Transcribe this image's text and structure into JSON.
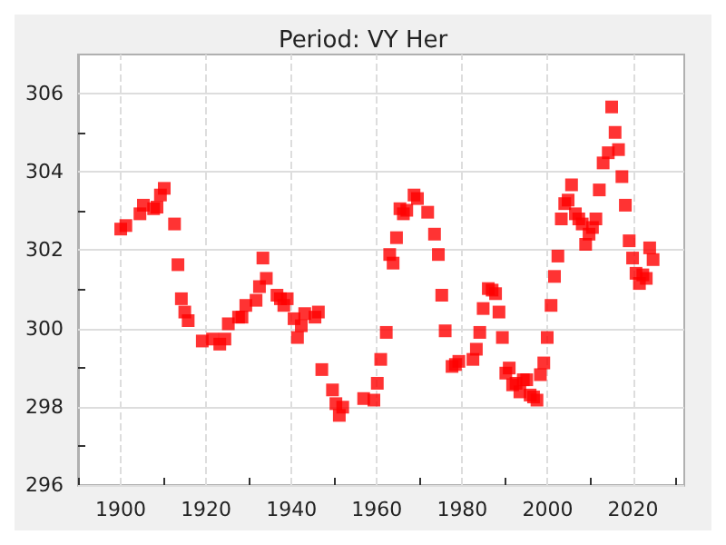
{
  "chart_data": {
    "type": "scatter",
    "title": "Period: VY Her",
    "marker": "square",
    "grid": true,
    "xlim": [
      1890,
      2032
    ],
    "xticks": [
      {
        "value": 1890,
        "label": null
      },
      1900,
      {
        "value": 1910,
        "label": null
      },
      1920,
      {
        "value": 1930,
        "label": null
      },
      1940,
      {
        "value": 1950,
        "label": null
      },
      1960,
      {
        "value": 1970,
        "label": null
      },
      1980,
      {
        "value": 1990,
        "label": null
      },
      2000,
      {
        "value": 2010,
        "label": null
      },
      2020,
      {
        "value": 2030,
        "label": null
      }
    ],
    "ylim": [
      296,
      307
    ],
    "yticks": [
      296,
      {
        "value": 297,
        "label": null
      },
      298,
      {
        "value": 299,
        "label": null
      },
      300,
      {
        "value": 301,
        "label": null
      },
      302,
      {
        "value": 303,
        "label": null
      },
      304,
      {
        "value": 305,
        "label": null
      },
      306
    ],
    "series": [
      {
        "color": "#ff0000",
        "x": [
          1900,
          1901.2,
          1904.5,
          1905.3,
          1907.7,
          1908.5,
          1909.3,
          1910.2,
          1912.6,
          1913.4,
          1914.2,
          1915,
          1915.8,
          1919.1,
          1921.5,
          1923.2,
          1924.4,
          1925.2,
          1927.6,
          1928.4,
          1929.3,
          1931.7,
          1932.5,
          1933.3,
          1934.1,
          1936.6,
          1937.4,
          1938.2,
          1939,
          1940.6,
          1941.4,
          1942.3,
          1943.1,
          1945.5,
          1946.3,
          1947.1,
          1949.6,
          1950.4,
          1951.2,
          1952,
          1956.9,
          1959.3,
          1960.1,
          1960.9,
          1962.2,
          1963,
          1963.8,
          1964.6,
          1965.4,
          1966.2,
          1967,
          1968.7,
          1969.5,
          1971.9,
          1973.5,
          1974.4,
          1975.2,
          1976,
          1977.6,
          1978.4,
          1979.2,
          1982.5,
          1983.3,
          1984.1,
          1984.9,
          1986.1,
          1987,
          1987.8,
          1988.6,
          1989.4,
          1990.2,
          1991,
          1991.8,
          1992.6,
          1993.5,
          1994.3,
          1995.1,
          1995.9,
          1996.7,
          1997.5,
          1998.3,
          1999.1,
          1999.9,
          2000.8,
          2001.6,
          2002.4,
          2003.2,
          2004,
          2004.8,
          2005.6,
          2006.5,
          2007.3,
          2008.1,
          2008.9,
          2009.7,
          2010.5,
          2011.3,
          2012.1,
          2013,
          2014.2,
          2015,
          2015.8,
          2016.6,
          2017.4,
          2018.2,
          2019.1,
          2019.9,
          2020.7,
          2021.5,
          2022.3,
          2023.1,
          2023.9,
          2024.7
        ],
        "values": [
          302.54,
          302.63,
          302.93,
          303.15,
          303.06,
          303.1,
          303.41,
          303.58,
          302.67,
          301.63,
          300.76,
          300.42,
          300.2,
          299.68,
          299.73,
          299.6,
          299.73,
          300.12,
          300.29,
          300.29,
          300.59,
          300.72,
          301.07,
          301.8,
          301.28,
          300.85,
          300.76,
          300.59,
          300.76,
          300.25,
          299.77,
          300.07,
          300.38,
          300.29,
          300.42,
          298.95,
          298.43,
          298.08,
          297.78,
          297.99,
          298.21,
          298.17,
          298.6,
          299.21,
          299.9,
          301.89,
          301.67,
          302.32,
          303.06,
          302.93,
          303.02,
          303.41,
          303.32,
          302.97,
          302.41,
          301.89,
          300.85,
          299.94,
          299.03,
          299.08,
          299.16,
          299.21,
          299.47,
          299.9,
          300.51,
          301.02,
          300.98,
          300.89,
          300.42,
          299.77,
          298.86,
          298.99,
          298.56,
          298.6,
          298.38,
          298.69,
          298.69,
          298.3,
          298.25,
          298.17,
          298.82,
          299.12,
          299.77,
          300.59,
          301.33,
          301.85,
          302.8,
          303.19,
          303.28,
          303.67,
          302.93,
          302.8,
          302.67,
          302.15,
          302.41,
          302.58,
          302.8,
          303.54,
          304.23,
          304.49,
          305.66,
          305.01,
          304.57,
          303.88,
          303.15,
          302.24,
          301.8,
          301.41,
          301.15,
          301.37,
          301.28,
          302.06,
          301.76
        ]
      }
    ]
  }
}
